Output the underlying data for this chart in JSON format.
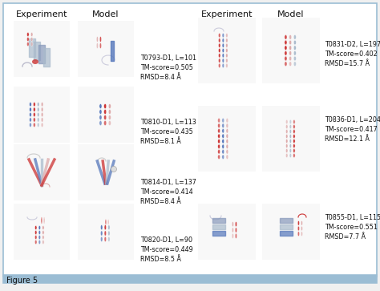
{
  "figure_label": "Figure 5",
  "bg": "#f0f0f0",
  "panel_bg": "#ffffff",
  "border_color": "#9bbdd4",
  "bottom_bar_color": "#9bbdd4",
  "left_header_experiment": "Experiment",
  "left_header_model": "Model",
  "right_header_experiment": "Experiment",
  "right_header_model": "Model",
  "annotations_left": [
    "T0793-D1, L=101\nTM-score=0.505\nRMSD=8.4 Å",
    "T0810-D1, L=113\nTM-score=0.435\nRMSD=8.1 Å",
    "T0814-D1, L=137\nTM-score=0.414\nRMSD=8.4 Å",
    "T0820-D1, L=90\nTM-score=0.449\nRMSD=8.5 Å"
  ],
  "annotations_right": [
    "T0831-D2, L=197\nTM-score=0.402\nRMSD=15.7 Å",
    "T0836-D1, L=204\nTM-score=0.417\nRMSD=12.1 Å",
    "T0855-D1, L=115\nTM-score=0.551\nRMSD=7.7 Å"
  ],
  "font_size_header": 8,
  "font_size_label": 5.8,
  "font_size_figure": 7,
  "red": "#cc3333",
  "blue": "#5577bb",
  "pink": "#ddaaaa",
  "lightblue": "#aabbcc",
  "white": "#ffffff",
  "gray": "#cccccc"
}
